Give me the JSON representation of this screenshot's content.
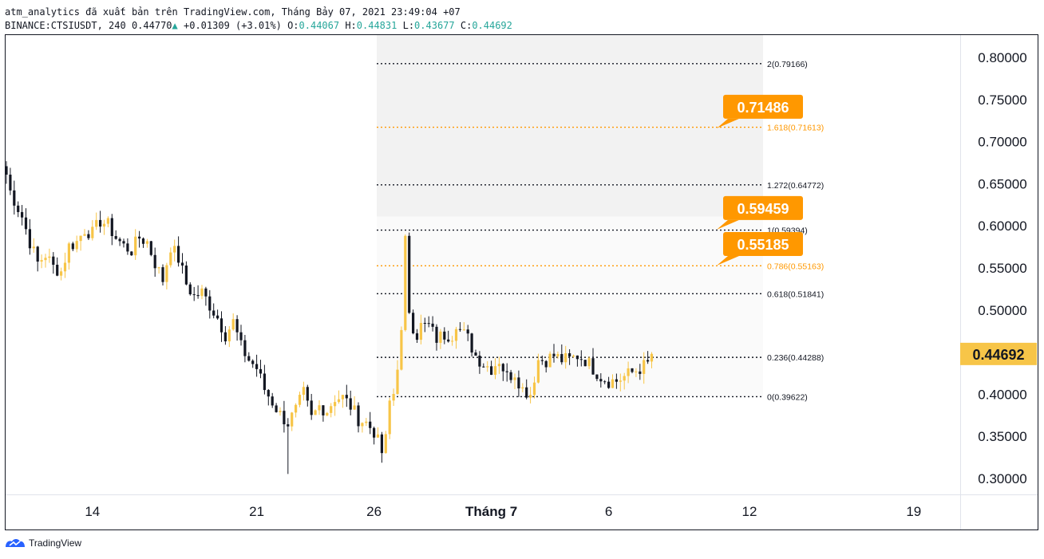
{
  "header": {
    "line1": "atm_analytics đã xuất bản trên TradingView.com, Tháng Bảy 07, 2021 23:49:04 +07",
    "symbol": "BINANCE:CTSIUSDT, 240",
    "last": "0.44770",
    "change": "+0.01309 (+3.01%)",
    "o_label": "O:",
    "o": "0.44067",
    "h_label": "H:",
    "h": "0.44831",
    "l_label": "L:",
    "l": "0.43677",
    "c_label": "C:",
    "c": "0.44692"
  },
  "footer": {
    "brand": "TradingView"
  },
  "colors": {
    "up": "#f7c548",
    "down": "#131722",
    "accent": "#ff9800",
    "price": "#f7c548",
    "fib_zone": "#f2f2f2"
  },
  "chart_data": {
    "type": "candlestick",
    "ylim": [
      0.28,
      0.82
    ],
    "y_ticks": [
      "0.30000",
      "0.35000",
      "0.40000",
      "0.45000",
      "0.50000",
      "0.55000",
      "0.60000",
      "0.65000",
      "0.70000",
      "0.75000",
      "0.80000"
    ],
    "y_tick_values": [
      0.3,
      0.35,
      0.4,
      0.45,
      0.5,
      0.55,
      0.6,
      0.65,
      0.7,
      0.75,
      0.8
    ],
    "x_ticks": [
      {
        "label": "14",
        "bar": 22
      },
      {
        "label": "21",
        "bar": 64
      },
      {
        "label": "26",
        "bar": 94
      },
      {
        "label": "Tháng 7",
        "bar": 124
      },
      {
        "label": "6",
        "bar": 154
      },
      {
        "label": "12",
        "bar": 190
      },
      {
        "label": "19",
        "bar": 232
      }
    ],
    "last_price": "0.44692",
    "last_price_value": 0.44692,
    "fib_levels": [
      {
        "label": "2(0.79166)",
        "value": 0.79166,
        "orange": false
      },
      {
        "label": "1.618(0.71613)",
        "value": 0.71613,
        "orange": true
      },
      {
        "label": "1.272(0.64772)",
        "value": 0.64772,
        "orange": false
      },
      {
        "label": "1(0.59394)",
        "value": 0.59394,
        "orange": false
      },
      {
        "label": "0.786(0.55163)",
        "value": 0.55163,
        "orange": true
      },
      {
        "label": "0.618(0.51841)",
        "value": 0.51841,
        "orange": false
      },
      {
        "label": "0.236(0.44288)",
        "value": 0.44288,
        "orange": false
      },
      {
        "label": "0(0.39622)",
        "value": 0.39622,
        "orange": false
      }
    ],
    "callouts": [
      {
        "text": "0.71486",
        "value": 0.71486
      },
      {
        "text": "0.59459",
        "value": 0.59459
      },
      {
        "text": "0.55185",
        "value": 0.55185
      }
    ],
    "waypoints": [
      [
        0,
        0.66
      ],
      [
        1,
        0.64
      ],
      [
        4,
        0.61
      ],
      [
        6,
        0.58
      ],
      [
        8,
        0.555
      ],
      [
        10,
        0.565
      ],
      [
        12,
        0.55
      ],
      [
        14,
        0.545
      ],
      [
        16,
        0.575
      ],
      [
        18,
        0.58
      ],
      [
        20,
        0.595
      ],
      [
        22,
        0.59
      ],
      [
        24,
        0.605
      ],
      [
        26,
        0.6
      ],
      [
        28,
        0.585
      ],
      [
        30,
        0.575
      ],
      [
        32,
        0.57
      ],
      [
        34,
        0.585
      ],
      [
        36,
        0.58
      ],
      [
        38,
        0.555
      ],
      [
        40,
        0.535
      ],
      [
        42,
        0.575
      ],
      [
        44,
        0.56
      ],
      [
        46,
        0.53
      ],
      [
        48,
        0.515
      ],
      [
        50,
        0.52
      ],
      [
        52,
        0.505
      ],
      [
        54,
        0.49
      ],
      [
        56,
        0.47
      ],
      [
        58,
        0.485
      ],
      [
        60,
        0.455
      ],
      [
        62,
        0.44
      ],
      [
        64,
        0.43
      ],
      [
        66,
        0.405
      ],
      [
        68,
        0.39
      ],
      [
        70,
        0.375
      ],
      [
        72,
        0.365
      ],
      [
        74,
        0.38
      ],
      [
        76,
        0.4
      ],
      [
        78,
        0.37
      ],
      [
        80,
        0.385
      ],
      [
        82,
        0.38
      ],
      [
        84,
        0.395
      ],
      [
        86,
        0.395
      ],
      [
        88,
        0.385
      ],
      [
        90,
        0.37
      ],
      [
        92,
        0.365
      ],
      [
        94,
        0.355
      ],
      [
        96,
        0.33
      ],
      [
        97,
        0.345
      ],
      [
        98,
        0.39
      ],
      [
        99,
        0.4
      ],
      [
        101,
        0.47
      ],
      [
        102,
        0.58
      ],
      [
        103,
        0.5
      ],
      [
        104,
        0.48
      ],
      [
        105,
        0.47
      ],
      [
        106,
        0.48
      ],
      [
        108,
        0.48
      ],
      [
        110,
        0.465
      ],
      [
        112,
        0.47
      ],
      [
        114,
        0.47
      ],
      [
        115,
        0.485
      ],
      [
        116,
        0.475
      ],
      [
        118,
        0.465
      ],
      [
        120,
        0.445
      ],
      [
        122,
        0.435
      ],
      [
        124,
        0.43
      ],
      [
        126,
        0.44
      ],
      [
        128,
        0.42
      ],
      [
        130,
        0.425
      ],
      [
        132,
        0.405
      ],
      [
        134,
        0.4
      ],
      [
        136,
        0.44
      ],
      [
        138,
        0.44
      ],
      [
        140,
        0.445
      ],
      [
        142,
        0.44
      ],
      [
        144,
        0.44
      ],
      [
        146,
        0.445
      ],
      [
        148,
        0.44
      ],
      [
        150,
        0.43
      ],
      [
        152,
        0.42
      ],
      [
        154,
        0.415
      ],
      [
        156,
        0.415
      ],
      [
        158,
        0.42
      ],
      [
        160,
        0.425
      ],
      [
        162,
        0.43
      ],
      [
        164,
        0.435
      ],
      [
        165,
        0.447
      ]
    ]
  }
}
